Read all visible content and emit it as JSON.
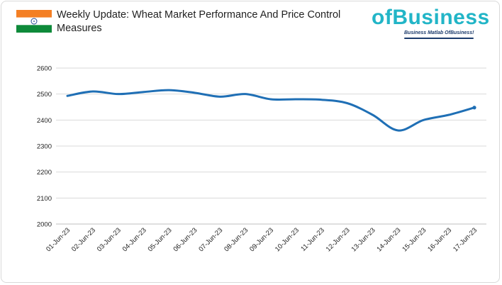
{
  "header": {
    "title": "Weekly Update: Wheat Market Performance And Price Control Measures",
    "flag_colors": {
      "saffron": "#f47f24",
      "white": "#ffffff",
      "green": "#0e8a3a",
      "chakra": "#1a3f8f"
    }
  },
  "logo": {
    "word": "ofBusiness",
    "tagline": "Business Matlab OfBusiness!",
    "brand_color": "#22b5c7",
    "tagline_color": "#1b3a6b"
  },
  "chart_data": {
    "type": "line",
    "title": "",
    "xlabel": "",
    "ylabel": "",
    "categories": [
      "01-Jun-23",
      "02-Jun-23",
      "03-Jun-23",
      "04-Jun-23",
      "05-Jun-23",
      "06-Jun-23",
      "07-Jun-23",
      "08-Jun-23",
      "09-Jun-23",
      "10-Jun-23",
      "11-Jun-23",
      "12-Jun-23",
      "13-Jun-23",
      "14-Jun-23",
      "15-Jun-23",
      "16-Jun-23",
      "17-Jun-23"
    ],
    "series": [
      {
        "values": [
          2493,
          2510,
          2500,
          2508,
          2515,
          2505,
          2490,
          2500,
          2480,
          2480,
          2478,
          2465,
          2420,
          2360,
          2400,
          2420,
          2448
        ],
        "color": "#1f6fb5"
      }
    ],
    "ylim": [
      2000,
      2600
    ],
    "yticks": [
      2000,
      2100,
      2200,
      2300,
      2400,
      2500,
      2600
    ],
    "grid": true,
    "legend": "none"
  }
}
